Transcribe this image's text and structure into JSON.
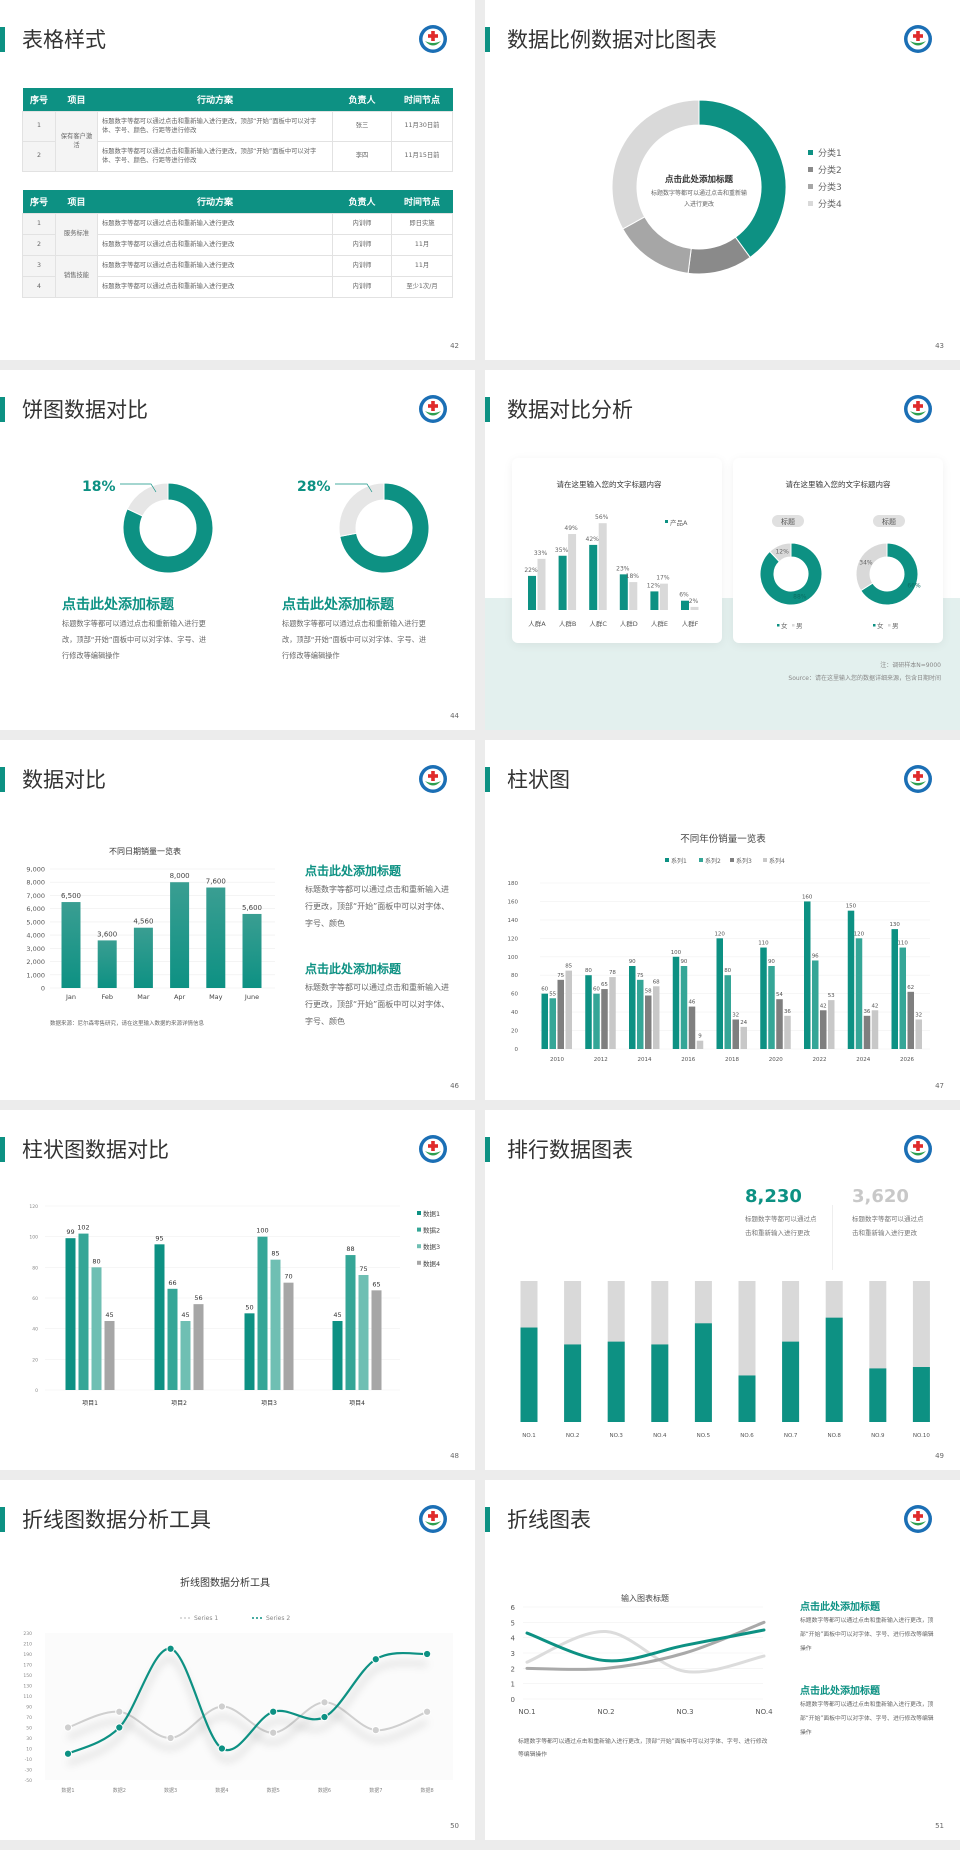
{
  "colors": {
    "teal": "#0d9183",
    "teal2": "#35a697",
    "teal3": "#6fbfb3",
    "gray_dark": "#8a8a8a",
    "gray": "#a6a6a6",
    "gray_light": "#d9d9d9"
  },
  "slides": [
    {
      "page": "42",
      "title": "表格样式",
      "table1": {
        "headers": [
          "序号",
          "项目",
          "行动方案",
          "负责人",
          "时间节点"
        ],
        "groups": [
          {
            "label": "保有客户激活",
            "rows": [
              {
                "no": "1",
                "plan": "标题数字等都可以通过点击和重新输入进行更改，顶部“开始”面板中可以对字体、字号、颜色、行距等进行修改",
                "owner": "张三",
                "time": "11月30日前"
              },
              {
                "no": "2",
                "plan": "标题数字等都可以通过点击和重新输入进行更改，顶部“开始”面板中可以对字体、字号、颜色、行距等进行修改",
                "owner": "李四",
                "time": "11月15日前"
              }
            ]
          }
        ]
      },
      "table2": {
        "headers": [
          "序号",
          "项目",
          "行动方案",
          "负责人",
          "时间节点"
        ],
        "groups": [
          {
            "label": "服务标准",
            "rows": [
              {
                "no": "1",
                "plan": "标题数字等都可以通过点击和重新输入进行更改",
                "owner": "内训师",
                "time": "即日实施"
              },
              {
                "no": "2",
                "plan": "标题数字等都可以通过点击和重新输入进行更改",
                "owner": "内训师",
                "time": "11月"
              }
            ]
          },
          {
            "label": "销售技能",
            "rows": [
              {
                "no": "3",
                "plan": "标题数字等都可以通过点击和重新输入进行更改",
                "owner": "内训师",
                "time": "11月"
              },
              {
                "no": "4",
                "plan": "标题数字等都可以通过点击和重新输入进行更改",
                "owner": "内训师",
                "time": "至少1次/月"
              }
            ]
          }
        ]
      }
    },
    {
      "page": "43",
      "title": "数据比例数据对比图表",
      "center_title": "点击此处添加标题",
      "center_text": "标题数字等都可以通过点击和重新输入进行更改"
    },
    {
      "page": "44",
      "title": "饼图数据对比",
      "items": [
        {
          "percent": "18%",
          "heading": "点击此处添加标题",
          "text": "标题数字等都可以通过点击和重新输入进行更改，顶部“开始”面板中可以对字体、字号、进行修改等编辑操作"
        },
        {
          "percent": "28%",
          "heading": "点击此处添加标题",
          "text": "标题数字等都可以通过点击和重新输入进行更改，顶部“开始”面板中可以对字体、字号、进行修改等编辑操作"
        }
      ]
    },
    {
      "page": "45",
      "title": "数据对比分析",
      "card1_title": "请在这里输入您的文字标题内容",
      "card2_title": "请在这里输入您的文字标题内容",
      "pill1": "标题",
      "pill2": "标题",
      "note": "注：调研样本N=9000",
      "source": "Source：请在这里输入您的数据详细来源，包含日期时间"
    },
    {
      "page": "46",
      "title": "数据对比",
      "source": "数据来源：尼尔森零售研究，请在这里输入数据的来源详情信息",
      "blocks": [
        {
          "heading": "点击此处添加标题",
          "text": "标题数字等都可以通过点击和重新输入进行更改，顶部“开始”面板中可以对字体、字号、颜色"
        },
        {
          "heading": "点击此处添加标题",
          "text": "标题数字等都可以通过点击和重新输入进行更改，顶部“开始”面板中可以对字体、字号、颜色"
        }
      ]
    },
    {
      "page": "47",
      "title": "柱状图"
    },
    {
      "page": "48",
      "title": "柱状图数据对比"
    },
    {
      "page": "49",
      "title": "排行数据图表",
      "stats": [
        {
          "value": "8,230",
          "text": "标题数字等都可以通过点击和重新输入进行更改",
          "color": "#0d9183"
        },
        {
          "value": "3,620",
          "text": "标题数字等都可以通过点击和重新输入进行更改",
          "color": "#c8c8c8"
        }
      ]
    },
    {
      "page": "50",
      "title": "折线图数据分析工具"
    },
    {
      "page": "51",
      "title": "折线图表",
      "bottom_text": "标题数字等都可以通过点击和重新输入进行更改，顶部“开始”面板中可以对字体、字号、进行修改等编辑操作",
      "blocks": [
        {
          "heading": "点击此处添加标题",
          "text": "标题数字等都可以通过点击和重新输入进行更改，顶部“开始”面板中可以对字体、字号、进行修改等编辑操作"
        },
        {
          "heading": "点击此处添加标题",
          "text": "标题数字等都可以通过点击和重新输入进行更改，顶部“开始”面板中可以对字体、字号、进行修改等编辑操作"
        }
      ]
    }
  ],
  "chart_data": [
    {
      "id": "s43",
      "type": "pie",
      "donut": true,
      "categories": [
        "分类1",
        "分类2",
        "分类3",
        "分类4"
      ],
      "values": [
        40,
        12,
        15,
        33
      ],
      "legend": "right"
    },
    {
      "id": "s44a",
      "type": "pie",
      "donut": true,
      "values": [
        18,
        82
      ],
      "label": "18%"
    },
    {
      "id": "s44b",
      "type": "pie",
      "donut": true,
      "values": [
        28,
        72
      ],
      "label": "28%"
    },
    {
      "id": "s45bar",
      "type": "bar",
      "categories": [
        "人群A",
        "人群B",
        "人群C",
        "人群D",
        "人群E",
        "人群F"
      ],
      "series": [
        {
          "name": "产品A",
          "values": [
            22,
            35,
            42,
            23,
            12,
            6
          ]
        },
        {
          "values": [
            33,
            49,
            56,
            18,
            17,
            2
          ]
        }
      ],
      "labels": [
        [
          "22%",
          "35%",
          "42%",
          "23%",
          "12%",
          "6%"
        ],
        [
          "33%",
          "49%",
          "56%",
          "18%",
          "17%",
          "2%"
        ]
      ]
    },
    {
      "id": "s45pie1",
      "type": "pie",
      "donut": true,
      "categories": [
        "女",
        "男"
      ],
      "values": [
        88,
        12
      ],
      "labels": [
        "88%",
        "12%"
      ]
    },
    {
      "id": "s45pie2",
      "type": "pie",
      "donut": true,
      "categories": [
        "女",
        "男"
      ],
      "values": [
        66,
        34
      ],
      "labels": [
        "66%",
        "34%"
      ]
    },
    {
      "id": "s46",
      "type": "bar",
      "title": "不同日期销量一览表",
      "categories": [
        "Jan",
        "Feb",
        "Mar",
        "Apr",
        "May",
        "June"
      ],
      "values": [
        6500,
        3600,
        4560,
        8000,
        7600,
        5600
      ],
      "value_labels": [
        "6,500",
        "3,600",
        "4,560",
        "8,000",
        "7,600",
        "5,600"
      ],
      "ylim": [
        0,
        9000
      ],
      "yticks": [
        "0",
        "1,000",
        "2,000",
        "3,000",
        "4,000",
        "5,000",
        "6,000",
        "7,000",
        "8,000",
        "9,000"
      ],
      "grid": true
    },
    {
      "id": "s47",
      "type": "bar",
      "title": "不同年份销量一览表",
      "categories": [
        "2010",
        "2012",
        "2014",
        "2016",
        "2018",
        "2020",
        "2022",
        "2024",
        "2026"
      ],
      "series": [
        {
          "name": "系列1",
          "values": [
            60,
            80,
            90,
            100,
            120,
            110,
            160,
            150,
            130
          ]
        },
        {
          "name": "系列2",
          "values": [
            55,
            60,
            75,
            90,
            80,
            90,
            96,
            120,
            110
          ]
        },
        {
          "name": "系列3",
          "values": [
            75,
            65,
            58,
            46,
            32,
            54,
            42,
            36,
            62
          ]
        },
        {
          "name": "系列4",
          "values": [
            85,
            78,
            68,
            9,
            24,
            36,
            53,
            42,
            32
          ]
        }
      ],
      "ylim": [
        0,
        180
      ],
      "yticks": [
        "0",
        "20",
        "40",
        "60",
        "80",
        "100",
        "120",
        "140",
        "160",
        "180"
      ],
      "legend": "top",
      "grid": true
    },
    {
      "id": "s48",
      "type": "bar",
      "categories": [
        "项目1",
        "项目2",
        "项目3",
        "项目4"
      ],
      "series": [
        {
          "name": "数据1",
          "values": [
            99,
            95,
            50,
            45
          ]
        },
        {
          "name": "数据2",
          "values": [
            102,
            66,
            100,
            88
          ]
        },
        {
          "name": "数据3",
          "values": [
            80,
            45,
            85,
            75
          ]
        },
        {
          "name": "数据4",
          "values": [
            45,
            56,
            70,
            65
          ]
        }
      ],
      "ylim": [
        0,
        120
      ],
      "yticks": [
        "0",
        "20",
        "40",
        "60",
        "80",
        "100",
        "120"
      ],
      "legend": "right",
      "grid": true
    },
    {
      "id": "s49",
      "type": "bar",
      "stacked_percent": true,
      "categories": [
        "NO.1",
        "NO.2",
        "NO.3",
        "NO.4",
        "NO.5",
        "NO.6",
        "NO.7",
        "NO.8",
        "NO.9",
        "NO.10"
      ],
      "values": [
        0.67,
        0.55,
        0.57,
        0.55,
        0.7,
        0.33,
        0.57,
        0.74,
        0.38,
        0.39
      ]
    },
    {
      "id": "s50",
      "type": "line",
      "smooth": true,
      "title": "折线图数据分析工具",
      "categories": [
        "数据1",
        "数据2",
        "数据3",
        "数据4",
        "数据5",
        "数据6",
        "数据7",
        "数据8"
      ],
      "series": [
        {
          "name": "Series 1",
          "values": [
            50,
            80,
            30,
            90,
            40,
            98,
            45,
            80
          ]
        },
        {
          "name": "Series 2",
          "values": [
            0,
            50,
            200,
            10,
            80,
            70,
            180,
            190
          ]
        }
      ],
      "ylim": [
        -50,
        230
      ],
      "yticks": [
        "-50",
        "-30",
        "-10",
        "10",
        "30",
        "50",
        "70",
        "90",
        "110",
        "130",
        "150",
        "170",
        "190",
        "210",
        "230"
      ],
      "legend": "top"
    },
    {
      "id": "s51",
      "type": "line",
      "smooth": true,
      "title": "输入图表标题",
      "categories": [
        "NO.1",
        "NO.2",
        "NO.3",
        "NO.4"
      ],
      "series": [
        {
          "values": [
            4.3,
            2.5,
            3.5,
            4.5
          ]
        },
        {
          "values": [
            2.4,
            4.4,
            1.8,
            2.8
          ]
        },
        {
          "values": [
            2,
            2,
            3,
            5
          ]
        }
      ],
      "ylim": [
        0,
        6
      ],
      "yticks": [
        "0",
        "1",
        "2",
        "3",
        "4",
        "5",
        "6"
      ],
      "grid": true
    }
  ]
}
